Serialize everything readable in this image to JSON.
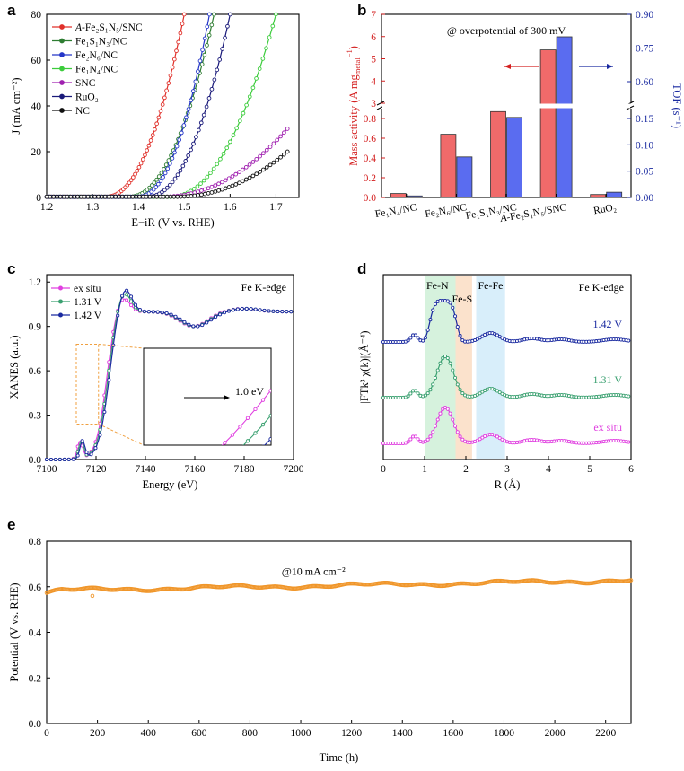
{
  "figure": {
    "panel_letters": [
      "a",
      "b",
      "c",
      "d",
      "e"
    ]
  },
  "chart_data": [
    {
      "id": "a",
      "type": "line",
      "xlabel": "E−iR (V vs. RHE)",
      "ylabel": "J (mA cm⁻²)",
      "xlim": [
        1.2,
        1.75
      ],
      "ylim": [
        0,
        80
      ],
      "xticks": [
        1.2,
        1.3,
        1.4,
        1.5,
        1.6,
        1.7
      ],
      "xtick_labels": [
        "1.2",
        "1.3",
        "1.4",
        "1.5",
        "1.6",
        "1.7"
      ],
      "yticks": [
        0,
        20,
        40,
        60,
        80
      ],
      "ytick_labels": [
        "0",
        "20",
        "40",
        "60",
        "80"
      ],
      "series": [
        {
          "name": "A-Fe2S1N5/SNC",
          "label_prefix": "A",
          "label_rest": "-Fe₂S₁N₅/SNC",
          "color": "#e0302a",
          "onset": 1.33,
          "x80": 1.5
        },
        {
          "name": "Fe1S1N3/NC",
          "label_prefix": "",
          "label_rest": "Fe₁S₁N₃/NC",
          "color": "#2e7d32",
          "onset": 1.38,
          "x80": 1.565
        },
        {
          "name": "Fe2N6/NC",
          "label_prefix": "",
          "label_rest": "Fe₂N₆/NC",
          "color": "#2436c8",
          "onset": 1.4,
          "x80": 1.555
        },
        {
          "name": "Fe1N4/NC",
          "label_prefix": "",
          "label_rest": "Fe₁N₄/NC",
          "color": "#3ccc3c",
          "onset": 1.47,
          "x80": 1.7
        },
        {
          "name": "SNC",
          "label_prefix": "",
          "label_rest": "SNC",
          "color": "#a020b0",
          "onset": 1.45,
          "xend": 1.725,
          "yend": 30
        },
        {
          "name": "RuO2",
          "label_prefix": "",
          "label_rest": "RuO₂",
          "color": "#1a1a7a",
          "onset": 1.42,
          "x80": 1.6
        },
        {
          "name": "NC",
          "label_prefix": "",
          "label_rest": "NC",
          "color": "#111111",
          "onset": 1.48,
          "xend": 1.725,
          "yend": 20
        }
      ]
    },
    {
      "id": "b",
      "type": "bar",
      "title": "@ overpotential of 300 mV",
      "categories": [
        "Fe₁N₄/NC",
        "Fe₂N₆/NC",
        "Fe₁S₁N₃/NC",
        "A-Fe₂S₁N₅/SNC",
        "RuO₂"
      ],
      "category_prefix": [
        "",
        "",
        "",
        "A",
        ""
      ],
      "category_rest": [
        "Fe₁N₄/NC",
        "Fe₂N₆/NC",
        "Fe₁S₁N₃/NC",
        "-Fe₂S₁N₅/SNC",
        "RuO₂"
      ],
      "series": [
        {
          "name": "Mass activity",
          "axis": "left",
          "color": "#f06a6a",
          "values": [
            0.04,
            0.64,
            0.87,
            5.4,
            0.03
          ]
        },
        {
          "name": "TOF",
          "axis": "right",
          "color": "#5a6cf0",
          "values": [
            0.003,
            0.077,
            0.152,
            0.8,
            0.01
          ]
        }
      ],
      "ylabel_left": "Mass activity (A mg",
      "ylabel_left_sub": "metal",
      "ylabel_left_sup": "−1",
      "ylabel_left_end": ")",
      "ylabel_right": "TOF (s⁻¹)",
      "yticks_left": [
        0.0,
        0.2,
        0.4,
        0.6,
        0.8,
        3,
        4,
        5,
        6,
        7
      ],
      "ytick_left_labels": [
        "0.0",
        "0.2",
        "0.4",
        "0.6",
        "0.8",
        "3",
        "4",
        "5",
        "6",
        "7"
      ],
      "yticks_right": [
        0.0,
        0.05,
        0.1,
        0.15,
        0.6,
        0.75,
        0.9
      ],
      "ytick_right_labels": [
        "0.00",
        "0.05",
        "0.10",
        "0.15",
        "0.60",
        "0.75",
        "0.90"
      ],
      "left_color": "#d42020",
      "right_color": "#1a2aa0"
    },
    {
      "id": "c",
      "type": "line",
      "xlabel": "Energy (eV)",
      "ylabel": "XANES (a.u.)",
      "xlim": [
        7100,
        7200
      ],
      "ylim": [
        0,
        1.25
      ],
      "xticks": [
        7100,
        7120,
        7140,
        7160,
        7180,
        7200
      ],
      "xtick_labels": [
        "7100",
        "7120",
        "7140",
        "7160",
        "7180",
        "7200"
      ],
      "yticks": [
        0.0,
        0.3,
        0.6,
        0.9,
        1.2
      ],
      "ytick_labels": [
        "0.0",
        "0.3",
        "0.6",
        "0.9",
        "1.2"
      ],
      "annotation": "Fe K-edge",
      "inset_annotation": "1.0 eV",
      "series": [
        {
          "name": "ex situ",
          "color": "#e040e0",
          "shift": -0.5,
          "peak": 1.1
        },
        {
          "name": "1.31 V",
          "color": "#3aa070",
          "shift": 0.0,
          "peak": 1.13
        },
        {
          "name": "1.42 V",
          "color": "#1a2aa0",
          "shift": 0.5,
          "peak": 1.15
        }
      ]
    },
    {
      "id": "d",
      "type": "line",
      "xlabel": "R (Å)",
      "ylabel": "|FTk³ χ(k)|(Å⁻⁴)",
      "xlim": [
        0,
        6
      ],
      "xticks": [
        0,
        1,
        2,
        3,
        4,
        5,
        6
      ],
      "xtick_labels": [
        "0",
        "1",
        "2",
        "3",
        "4",
        "5",
        "6"
      ],
      "annotation": "Fe K-edge",
      "regions": [
        {
          "label": "Fe-N",
          "from": 1.0,
          "to": 1.75,
          "color": "#d6f2dd"
        },
        {
          "label": "Fe-S",
          "from": 1.75,
          "to": 2.15,
          "color": "#fbe2cc"
        },
        {
          "label": "Fe-Fe",
          "from": 2.25,
          "to": 2.95,
          "color": "#d8eefa"
        }
      ],
      "series": [
        {
          "name": "1.42 V",
          "color": "#1a2aa0"
        },
        {
          "name": "1.31 V",
          "color": "#3aa070"
        },
        {
          "name": "ex situ",
          "color": "#e040e0"
        }
      ]
    },
    {
      "id": "e",
      "type": "scatter",
      "xlabel": "Time (h)",
      "ylabel": "Potential (V vs. RHE)",
      "xlim": [
        0,
        2300
      ],
      "ylim": [
        0,
        0.8
      ],
      "xticks": [
        0,
        200,
        400,
        600,
        800,
        1000,
        1200,
        1400,
        1600,
        1800,
        2000,
        2200
      ],
      "xtick_labels": [
        "0",
        "200",
        "400",
        "600",
        "800",
        "1000",
        "1200",
        "1400",
        "1600",
        "1800",
        "2000",
        "2200"
      ],
      "yticks": [
        0.0,
        0.2,
        0.4,
        0.6,
        0.8
      ],
      "ytick_labels": [
        "0.0",
        "0.2",
        "0.4",
        "0.6",
        "0.8"
      ],
      "annotation": "@10 mA cm⁻²",
      "color": "#f0962a",
      "start_value": 0.575,
      "end_value": 0.62,
      "outlier": {
        "x": 180,
        "y": 0.56
      }
    }
  ]
}
